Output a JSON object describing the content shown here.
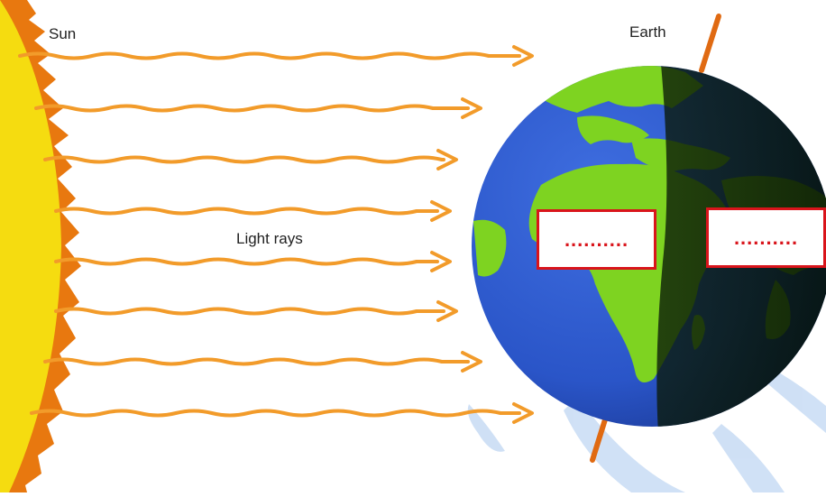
{
  "labels": {
    "sun": "Sun",
    "earth": "Earth",
    "rays": "Light rays"
  },
  "blanks": {
    "day_side": "..........",
    "night_side": ".........."
  },
  "colors": {
    "sun_core": "#f5dc10",
    "sun_corona": "#e8780f",
    "ray": "#f29b2a",
    "ocean": "#2a55c8",
    "land": "#7ed321",
    "night_shade": "#0a1a08",
    "axis": "#e06a12",
    "blank_border": "#d9141b",
    "watermark": "#a9c8ee"
  },
  "icons": [
    "sun-icon",
    "earth-globe-icon",
    "arrow-right-icon"
  ]
}
